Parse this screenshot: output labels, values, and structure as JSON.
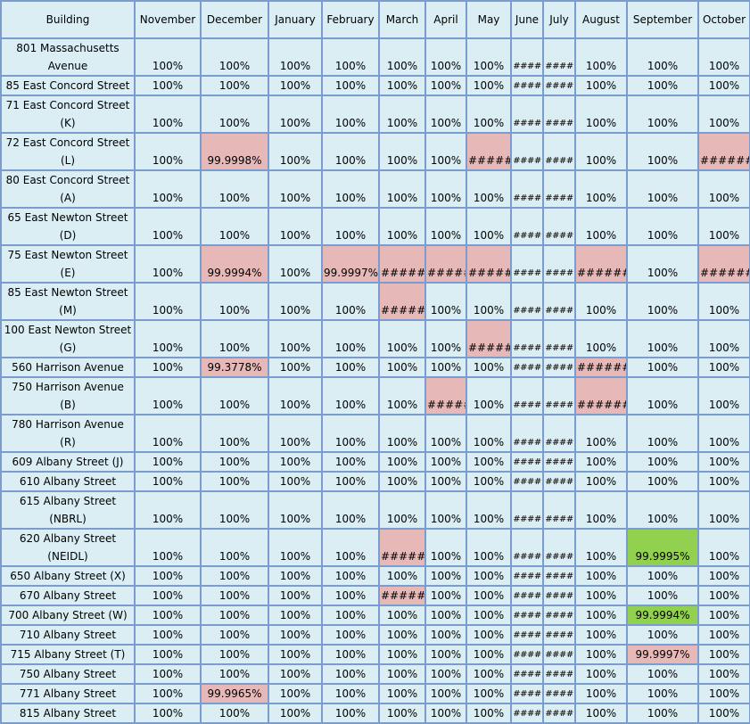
{
  "header": {
    "building": "Building",
    "months": [
      "November",
      "December",
      "January",
      "February",
      "March",
      "April",
      "May",
      "June",
      "July",
      "August",
      "September",
      "October"
    ]
  },
  "rows": [
    {
      "building": "801 Massachusetts Avenue",
      "values": [
        "100%",
        "100%",
        "100%",
        "100%",
        "100%",
        "100%",
        "100%",
        "####",
        "####",
        "100%",
        "100%",
        "100%"
      ],
      "status": [
        "",
        "",
        "",
        "",
        "",
        "",
        "",
        "",
        "",
        "",
        "",
        ""
      ]
    },
    {
      "building": "85 East Concord Street",
      "values": [
        "100%",
        "100%",
        "100%",
        "100%",
        "100%",
        "100%",
        "100%",
        "####",
        "####",
        "100%",
        "100%",
        "100%"
      ],
      "status": [
        "",
        "",
        "",
        "",
        "",
        "",
        "",
        "",
        "",
        "",
        "",
        ""
      ]
    },
    {
      "building": "71 East Concord Street (K)",
      "values": [
        "100%",
        "100%",
        "100%",
        "100%",
        "100%",
        "100%",
        "100%",
        "####",
        "####",
        "100%",
        "100%",
        "100%"
      ],
      "status": [
        "",
        "",
        "",
        "",
        "",
        "",
        "",
        "",
        "",
        "",
        "",
        ""
      ]
    },
    {
      "building": "72 East Concord Street (L)",
      "values": [
        "100%",
        "99.9998%",
        "100%",
        "100%",
        "100%",
        "100%",
        "#####",
        "####",
        "####",
        "100%",
        "100%",
        "#######"
      ],
      "status": [
        "",
        "pink",
        "",
        "",
        "",
        "",
        "pink",
        "",
        "",
        "",
        "",
        "pink"
      ]
    },
    {
      "building": "80 East Concord Street (A)",
      "values": [
        "100%",
        "100%",
        "100%",
        "100%",
        "100%",
        "100%",
        "100%",
        "####",
        "####",
        "100%",
        "100%",
        "100%"
      ],
      "status": [
        "",
        "",
        "",
        "",
        "",
        "",
        "",
        "",
        "",
        "",
        "",
        ""
      ]
    },
    {
      "building": "65 East Newton Street (D)",
      "values": [
        "100%",
        "100%",
        "100%",
        "100%",
        "100%",
        "100%",
        "100%",
        "####",
        "####",
        "100%",
        "100%",
        "100%"
      ],
      "status": [
        "",
        "",
        "",
        "",
        "",
        "",
        "",
        "",
        "",
        "",
        "",
        ""
      ]
    },
    {
      "building": "75 East Newton Street (E)",
      "values": [
        "100%",
        "99.9994%",
        "100%",
        "99.9997%",
        "#######",
        "######",
        "#####",
        "####",
        "####",
        "#######",
        "100%",
        "#######"
      ],
      "status": [
        "",
        "pink",
        "",
        "pink",
        "pink",
        "pink",
        "pink",
        "",
        "",
        "pink",
        "",
        "pink"
      ]
    },
    {
      "building": "85 East Newton Street (M)",
      "values": [
        "100%",
        "100%",
        "100%",
        "100%",
        "#######",
        "100%",
        "100%",
        "####",
        "####",
        "100%",
        "100%",
        "100%"
      ],
      "status": [
        "",
        "",
        "",
        "",
        "pink",
        "",
        "",
        "",
        "",
        "",
        "",
        ""
      ]
    },
    {
      "building": "100 East Newton Street (G)",
      "values": [
        "100%",
        "100%",
        "100%",
        "100%",
        "100%",
        "100%",
        "#####",
        "####",
        "####",
        "100%",
        "100%",
        "100%"
      ],
      "status": [
        "",
        "",
        "",
        "",
        "",
        "",
        "pink",
        "",
        "",
        "",
        "",
        ""
      ]
    },
    {
      "building": "560 Harrison Avenue",
      "values": [
        "100%",
        "99.3778%",
        "100%",
        "100%",
        "100%",
        "100%",
        "100%",
        "####",
        "####",
        "#######",
        "100%",
        "100%"
      ],
      "status": [
        "",
        "pink",
        "",
        "",
        "",
        "",
        "",
        "",
        "",
        "pink",
        "",
        ""
      ]
    },
    {
      "building": "750 Harrison Avenue (B)",
      "values": [
        "100%",
        "100%",
        "100%",
        "100%",
        "100%",
        "######",
        "100%",
        "####",
        "####",
        "#######",
        "100%",
        "100%"
      ],
      "status": [
        "",
        "",
        "",
        "",
        "",
        "pink",
        "",
        "",
        "",
        "pink",
        "",
        ""
      ]
    },
    {
      "building": "780 Harrison Avenue (R)",
      "values": [
        "100%",
        "100%",
        "100%",
        "100%",
        "100%",
        "100%",
        "100%",
        "####",
        "####",
        "100%",
        "100%",
        "100%"
      ],
      "status": [
        "",
        "",
        "",
        "",
        "",
        "",
        "",
        "",
        "",
        "",
        "",
        ""
      ]
    },
    {
      "building": "609 Albany Street (J)",
      "values": [
        "100%",
        "100%",
        "100%",
        "100%",
        "100%",
        "100%",
        "100%",
        "####",
        "####",
        "100%",
        "100%",
        "100%"
      ],
      "status": [
        "",
        "",
        "",
        "",
        "",
        "",
        "",
        "",
        "",
        "",
        "",
        ""
      ]
    },
    {
      "building": "610 Albany Street",
      "values": [
        "100%",
        "100%",
        "100%",
        "100%",
        "100%",
        "100%",
        "100%",
        "####",
        "####",
        "100%",
        "100%",
        "100%"
      ],
      "status": [
        "",
        "",
        "",
        "",
        "",
        "",
        "",
        "",
        "",
        "",
        "",
        ""
      ]
    },
    {
      "building": "615 Albany Street (NBRL)",
      "values": [
        "100%",
        "100%",
        "100%",
        "100%",
        "100%",
        "100%",
        "100%",
        "####",
        "####",
        "100%",
        "100%",
        "100%"
      ],
      "status": [
        "",
        "",
        "",
        "",
        "",
        "",
        "",
        "",
        "",
        "",
        "",
        ""
      ]
    },
    {
      "building": "620 Albany Street (NEIDL)",
      "values": [
        "100%",
        "100%",
        "100%",
        "100%",
        "#######",
        "100%",
        "100%",
        "####",
        "####",
        "100%",
        "99.9995%",
        "100%"
      ],
      "status": [
        "",
        "",
        "",
        "",
        "pink",
        "",
        "",
        "",
        "",
        "",
        "green",
        ""
      ]
    },
    {
      "building": "650 Albany Street (X)",
      "values": [
        "100%",
        "100%",
        "100%",
        "100%",
        "100%",
        "100%",
        "100%",
        "####",
        "####",
        "100%",
        "100%",
        "100%"
      ],
      "status": [
        "",
        "",
        "",
        "",
        "",
        "",
        "",
        "",
        "",
        "",
        "",
        ""
      ]
    },
    {
      "building": "670 Albany Street",
      "values": [
        "100%",
        "100%",
        "100%",
        "100%",
        "#######",
        "100%",
        "100%",
        "####",
        "####",
        "100%",
        "100%",
        "100%"
      ],
      "status": [
        "",
        "",
        "",
        "",
        "pink",
        "",
        "",
        "",
        "",
        "",
        "",
        ""
      ]
    },
    {
      "building": "700 Albany Street (W)",
      "values": [
        "100%",
        "100%",
        "100%",
        "100%",
        "100%",
        "100%",
        "100%",
        "####",
        "####",
        "100%",
        "99.9994%",
        "100%"
      ],
      "status": [
        "",
        "",
        "",
        "",
        "",
        "",
        "",
        "",
        "",
        "",
        "green",
        ""
      ]
    },
    {
      "building": "710 Albany Street",
      "values": [
        "100%",
        "100%",
        "100%",
        "100%",
        "100%",
        "100%",
        "100%",
        "####",
        "####",
        "100%",
        "100%",
        "100%"
      ],
      "status": [
        "",
        "",
        "",
        "",
        "",
        "",
        "",
        "",
        "",
        "",
        "",
        ""
      ]
    },
    {
      "building": "715 Albany Street (T)",
      "values": [
        "100%",
        "100%",
        "100%",
        "100%",
        "100%",
        "100%",
        "100%",
        "####",
        "####",
        "100%",
        "99.9997%",
        "100%"
      ],
      "status": [
        "",
        "",
        "",
        "",
        "",
        "",
        "",
        "",
        "",
        "",
        "pink",
        ""
      ]
    },
    {
      "building": "750 Albany Street",
      "values": [
        "100%",
        "100%",
        "100%",
        "100%",
        "100%",
        "100%",
        "100%",
        "####",
        "####",
        "100%",
        "100%",
        "100%"
      ],
      "status": [
        "",
        "",
        "",
        "",
        "",
        "",
        "",
        "",
        "",
        "",
        "",
        ""
      ]
    },
    {
      "building": "771 Albany Street",
      "values": [
        "100%",
        "99.9965%",
        "100%",
        "100%",
        "100%",
        "100%",
        "100%",
        "####",
        "####",
        "100%",
        "100%",
        "100%"
      ],
      "status": [
        "",
        "pink",
        "",
        "",
        "",
        "",
        "",
        "",
        "",
        "",
        "",
        ""
      ]
    },
    {
      "building": "815 Albany Street",
      "values": [
        "100%",
        "100%",
        "100%",
        "100%",
        "100%",
        "100%",
        "100%",
        "####",
        "####",
        "100%",
        "100%",
        "100%"
      ],
      "status": [
        "",
        "",
        "",
        "",
        "",
        "",
        "",
        "",
        "",
        "",
        "",
        ""
      ]
    }
  ],
  "colors": {
    "cell": "#daeef3",
    "border": "#7a9ccf",
    "pink": "#e6b9b8",
    "green": "#92d050"
  }
}
